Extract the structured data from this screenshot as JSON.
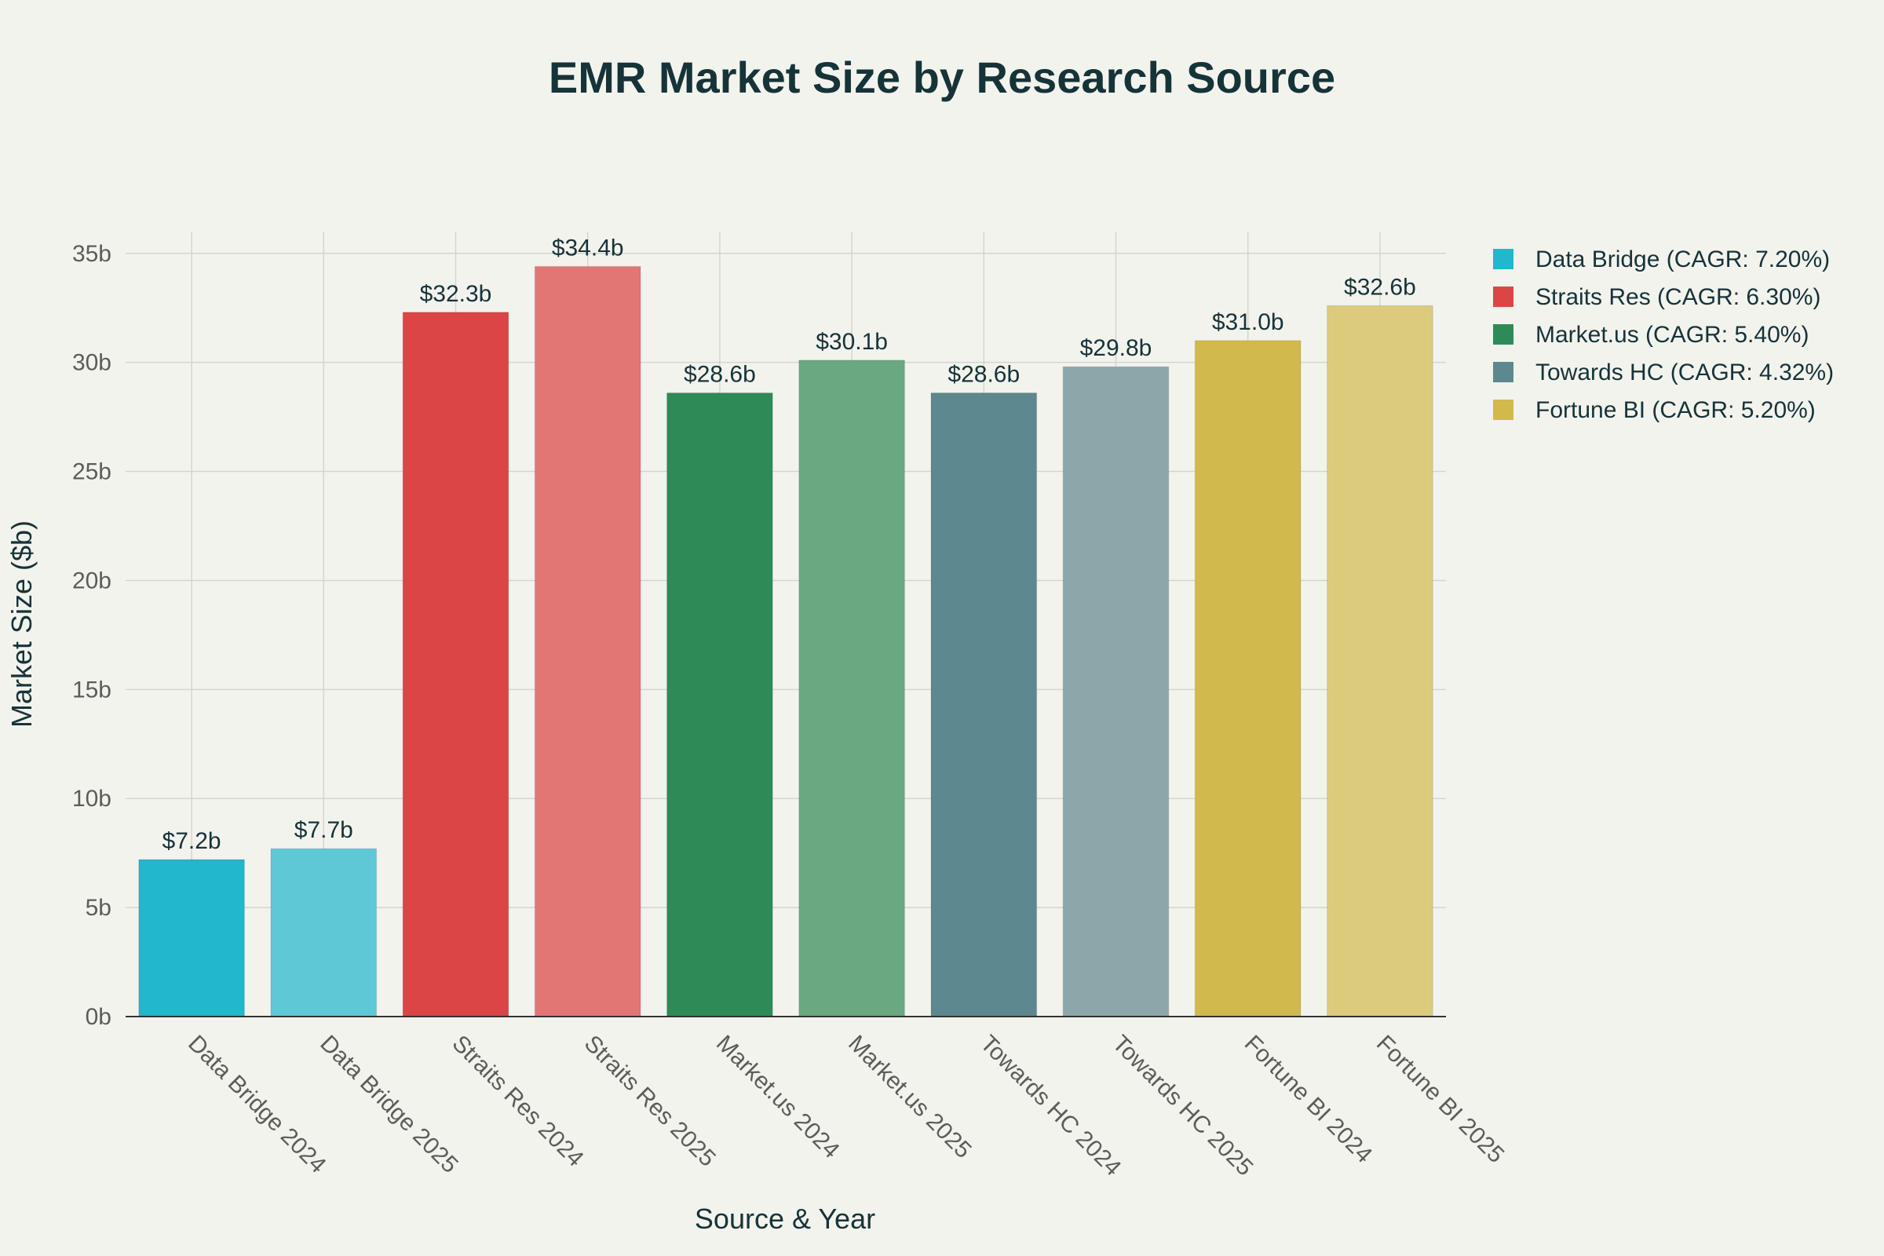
{
  "chart_data": {
    "type": "bar",
    "title": "EMR Market Size by Research Source",
    "xlabel": "Source & Year",
    "ylabel": "Market Size ($b)",
    "ylim": [
      0,
      36
    ],
    "y_ticks": [
      0,
      5,
      10,
      15,
      20,
      25,
      30,
      35
    ],
    "y_tick_labels": [
      "0b",
      "5b",
      "10b",
      "15b",
      "20b",
      "25b",
      "30b",
      "35b"
    ],
    "grid": true,
    "legend_position": "top-right",
    "categories": [
      "Data Bridge 2024",
      "Data Bridge 2025",
      "Straits Res 2024",
      "Straits Res 2025",
      "Market.us 2024",
      "Market.us 2025",
      "Towards HC 2024",
      "Towards HC 2025",
      "Fortune BI 2024",
      "Fortune BI 2025"
    ],
    "values": [
      7.2,
      7.7,
      32.3,
      34.4,
      28.6,
      30.1,
      28.6,
      29.8,
      31.0,
      32.6
    ],
    "data_labels": [
      "$7.2b",
      "$7.7b",
      "$32.3b",
      "$34.4b",
      "$28.6b",
      "$30.1b",
      "$28.6b",
      "$29.8b",
      "$31.0b",
      "$32.6b"
    ],
    "bar_colors": [
      "#21b7cc",
      "#5fc8d6",
      "#db4545",
      "#e27675",
      "#2e8b57",
      "#6aa882",
      "#5e8890",
      "#8ca7aa",
      "#d2b94b",
      "#dccb7c"
    ],
    "legend": [
      {
        "label": "Data Bridge (CAGR: 7.20%)",
        "color": "#21b7cc"
      },
      {
        "label": "Straits Res (CAGR: 6.30%)",
        "color": "#db4545"
      },
      {
        "label": "Market.us (CAGR: 5.40%)",
        "color": "#2e8b57"
      },
      {
        "label": "Towards HC (CAGR: 4.32%)",
        "color": "#5e8890"
      },
      {
        "label": "Fortune BI (CAGR: 5.20%)",
        "color": "#d2b94b"
      }
    ]
  }
}
